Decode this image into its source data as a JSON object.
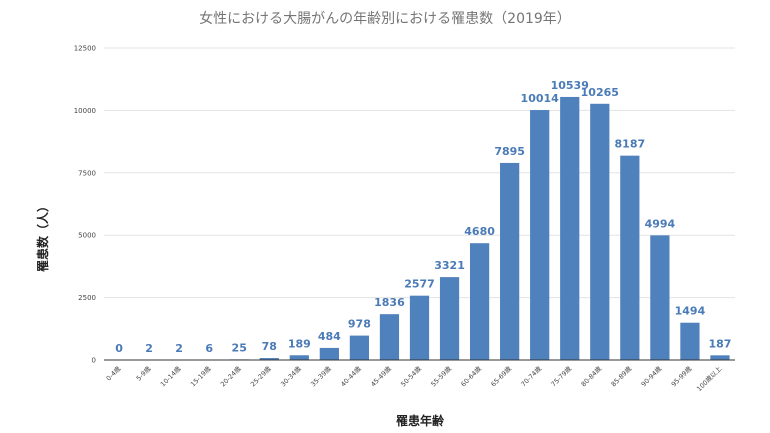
{
  "chart_data": {
    "type": "bar",
    "title": "女性における大腸がんの年齢別における罹患数（2019年）",
    "xlabel": "罹患年齢",
    "ylabel": "罹患数（人）",
    "ylim": [
      0,
      12500
    ],
    "yticks": [
      0,
      2500,
      5000,
      7500,
      10000,
      12500
    ],
    "grid": true,
    "bar_color": "#4f81bd",
    "label_color": "#4a7bb7",
    "categories": [
      "0-4歳",
      "5-9歳",
      "10-14歳",
      "15-19歳",
      "20-24歳",
      "25-29歳",
      "30-34歳",
      "35-39歳",
      "40-44歳",
      "45-49歳",
      "50-54歳",
      "55-59歳",
      "60-64歳",
      "65-69歳",
      "70-74歳",
      "75-79歳",
      "80-84歳",
      "85-89歳",
      "90-94歳",
      "95-99歳",
      "100歳以上"
    ],
    "values": [
      0,
      2,
      2,
      6,
      25,
      78,
      189,
      484,
      978,
      1836,
      2577,
      3321,
      4680,
      7895,
      10014,
      10539,
      10265,
      8187,
      4994,
      1494,
      187
    ]
  }
}
